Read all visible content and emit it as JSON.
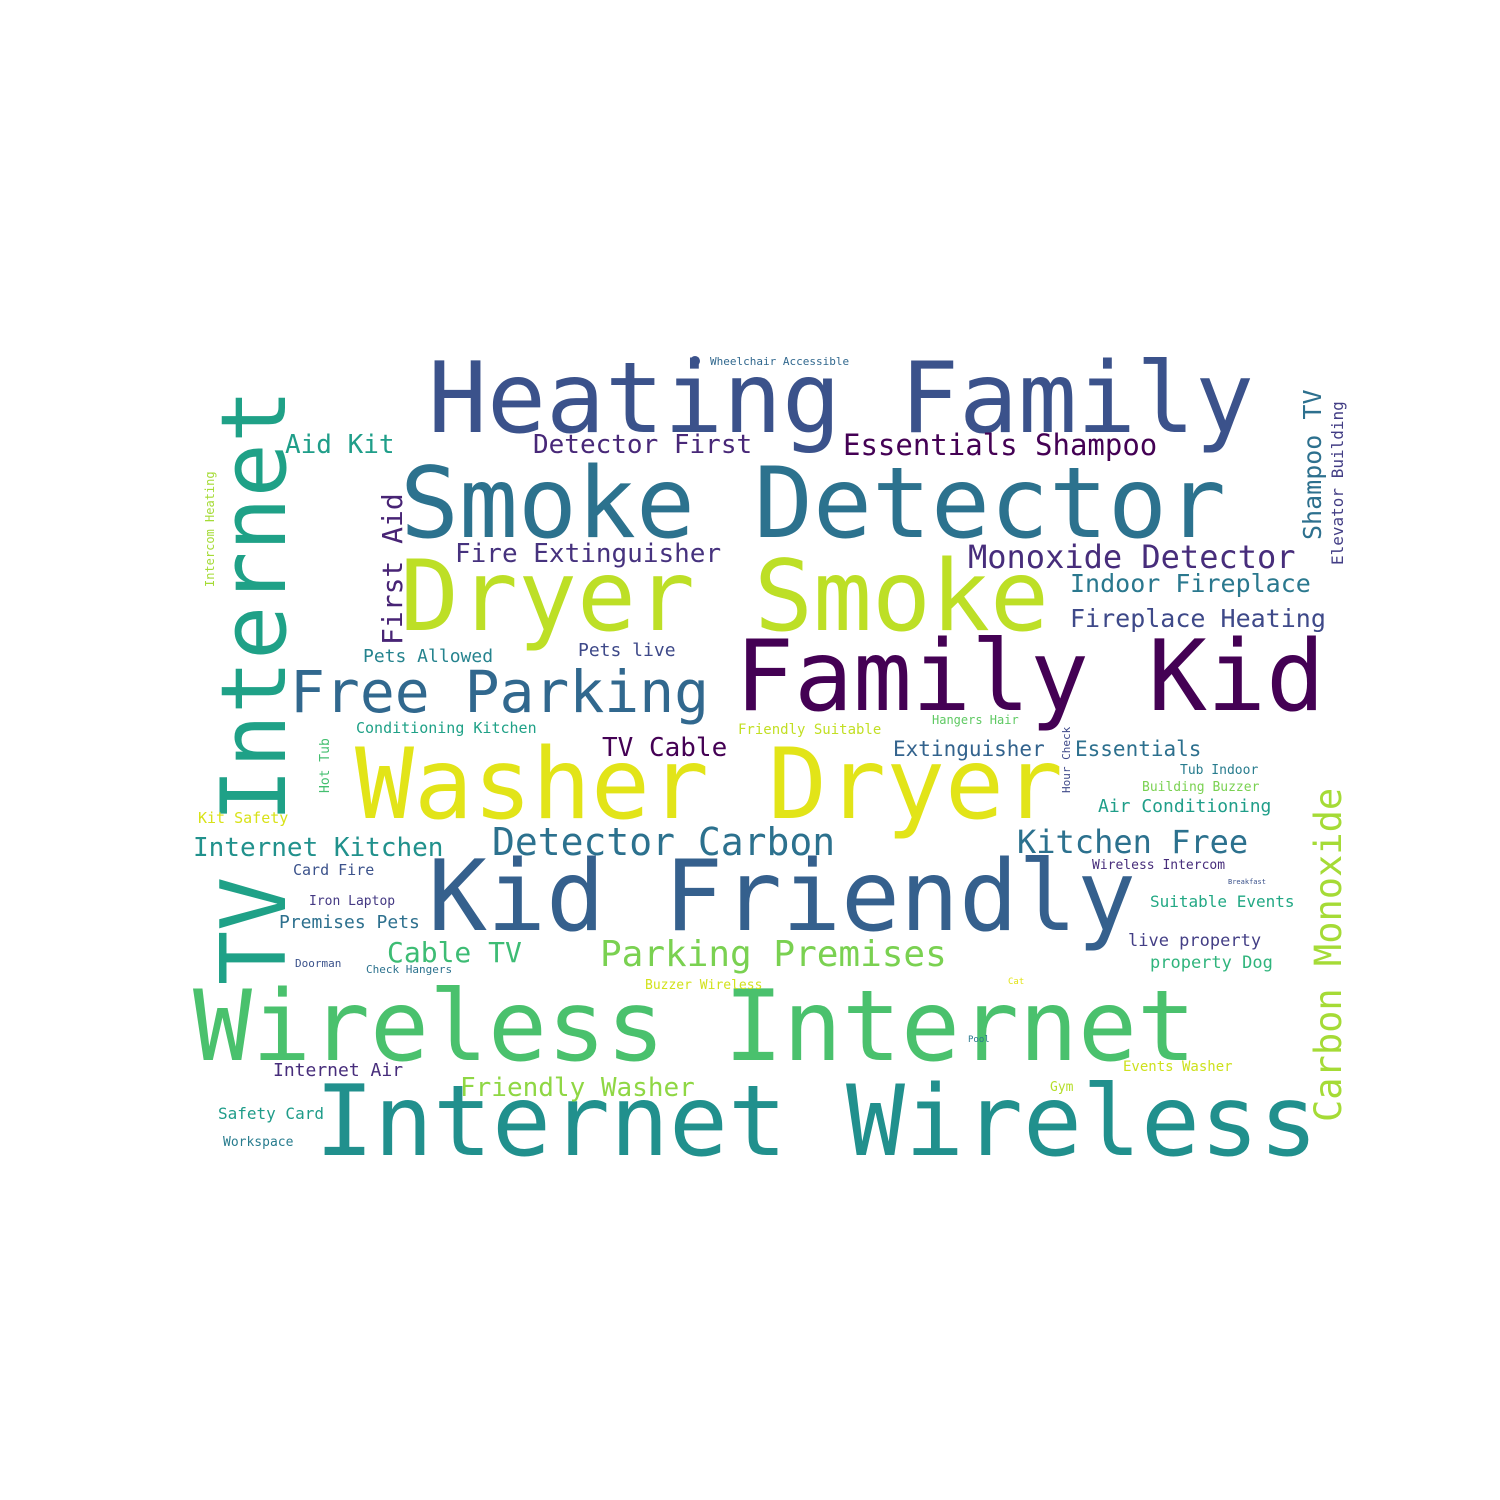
{
  "words": [
    {
      "text": "Heating Family",
      "color": "#3b528b"
    },
    {
      "text": "Smoke Detector",
      "color": "#2c728e"
    },
    {
      "text": "Dryer Smoke",
      "color": "#bddf26"
    },
    {
      "text": "Family Kid",
      "color": "#440154"
    },
    {
      "text": "Washer Dryer",
      "color": "#e2e418"
    },
    {
      "text": "Kid Friendly",
      "color": "#35608d"
    },
    {
      "text": "Wireless Internet",
      "color": "#4ac16d"
    },
    {
      "text": "Internet Wireless",
      "color": "#21908d"
    },
    {
      "text": "TV Internet",
      "color": "#1fa187"
    },
    {
      "text": "Free Parking",
      "color": "#31688e"
    },
    {
      "text": "Essentials Shampoo",
      "color": "#440154"
    },
    {
      "text": "Detector First",
      "color": "#482878"
    },
    {
      "text": "Aid Kit",
      "color": "#1f9e89"
    },
    {
      "text": "Fire Extinguisher",
      "color": "#46327e"
    },
    {
      "text": "Monoxide Detector",
      "color": "#472d7b"
    },
    {
      "text": "Indoor Fireplace",
      "color": "#2a788e"
    },
    {
      "text": "Fireplace Heating",
      "color": "#3e4989"
    },
    {
      "text": "First Aid",
      "color": "#482475"
    },
    {
      "text": "Pets Allowed",
      "color": "#25838e"
    },
    {
      "text": "Pets live",
      "color": "#3e4989"
    },
    {
      "text": "Conditioning Kitchen",
      "color": "#1fa187"
    },
    {
      "text": "Friendly Suitable",
      "color": "#c2df23"
    },
    {
      "text": "Hangers Hair",
      "color": "#5ec962"
    },
    {
      "text": "TV Cable",
      "color": "#440154"
    },
    {
      "text": "Extinguisher",
      "color": "#33638d"
    },
    {
      "text": "Essentials",
      "color": "#2d708e"
    },
    {
      "text": "Hour Check",
      "color": "#3e4989"
    },
    {
      "text": "Hot Tub",
      "color": "#44bf70"
    },
    {
      "text": "Tub Indoor",
      "color": "#287c8e"
    },
    {
      "text": "Building Buzzer",
      "color": "#7ad151"
    },
    {
      "text": "Air Conditioning",
      "color": "#1f9e89"
    },
    {
      "text": "Kit Safety",
      "color": "#d8e219"
    },
    {
      "text": "Internet Kitchen",
      "color": "#21918c"
    },
    {
      "text": "Detector Carbon",
      "color": "#2c718e"
    },
    {
      "text": "Kitchen Free",
      "color": "#2c718e"
    },
    {
      "text": "Card Fire",
      "color": "#3b528b"
    },
    {
      "text": "Wireless Intercom",
      "color": "#472d7b"
    },
    {
      "text": "Breakfast",
      "color": "#3b528b"
    },
    {
      "text": "Iron Laptop",
      "color": "#443983"
    },
    {
      "text": "Suitable Events",
      "color": "#22a884"
    },
    {
      "text": "Premises Pets",
      "color": "#2d708e"
    },
    {
      "text": "Cable TV",
      "color": "#3dbc74"
    },
    {
      "text": "Parking Premises",
      "color": "#7ad151"
    },
    {
      "text": "live property",
      "color": "#433e85"
    },
    {
      "text": "property Dog",
      "color": "#2fb47c"
    },
    {
      "text": "Doorman",
      "color": "#3b528b"
    },
    {
      "text": "Check Hangers",
      "color": "#2c728e"
    },
    {
      "text": "Buzzer Wireless",
      "color": "#d2e21b"
    },
    {
      "text": "Cat",
      "color": "#e2e418"
    },
    {
      "text": "Pool",
      "color": "#2a788e"
    },
    {
      "text": "Internet Air",
      "color": "#472d7b"
    },
    {
      "text": "Friendly Washer",
      "color": "#8fd744"
    },
    {
      "text": "Events Washer",
      "color": "#cde11d"
    },
    {
      "text": "Gym",
      "color": "#b5de2b"
    },
    {
      "text": "Safety Card",
      "color": "#1e9c89"
    },
    {
      "text": "Workspace",
      "color": "#287c8e"
    },
    {
      "text": "Carbon Monoxide",
      "color": "#a5db36"
    },
    {
      "text": "Shampoo TV",
      "color": "#2d708e"
    },
    {
      "text": "Elevator Building",
      "color": "#433e85"
    },
    {
      "text": "Intercom Heating",
      "color": "#a5db36"
    },
    {
      "text": "Wheelchair Accessible",
      "color": "#31688e"
    }
  ]
}
